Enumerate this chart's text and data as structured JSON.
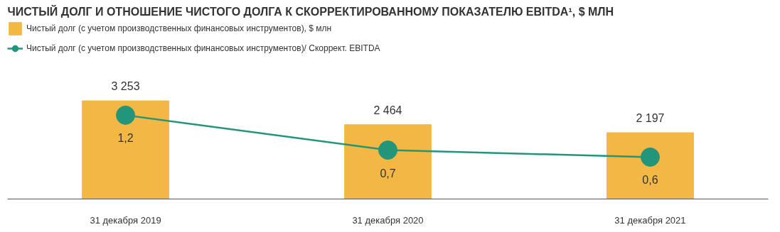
{
  "chart_data": {
    "type": "bar",
    "title": "ЧИСТЫЙ ДОЛГ И ОТНОШЕНИЕ ЧИСТОГО ДОЛГА К СКОРРЕКТИРОВАННОМУ ПОКАЗАТЕЛЮ EBITDA¹, $ МЛН",
    "categories": [
      "31 декабря 2019",
      "31 декабря 2020",
      "31 декабря 2021"
    ],
    "series": [
      {
        "name": "Чистый долг (с учетом производственных финансовых инструментов), $ млн",
        "color": "#f3b843",
        "values": [
          3253,
          2464,
          2197
        ],
        "value_labels": [
          "3 253",
          "2 464",
          "2 197"
        ]
      },
      {
        "name": "Чистый долг (с учетом производственных финансовых инструментов)/ Скоррект. EBITDA",
        "type": "line",
        "axis": "y2",
        "color": "#22957a",
        "values": [
          1.2,
          0.7,
          0.6
        ],
        "value_labels": [
          "1,2",
          "0,7",
          "0,6"
        ]
      }
    ],
    "ylim": [
      0,
      5900
    ],
    "y2lim": [
      0,
      2.55
    ],
    "marker": "circle",
    "legend": "top left",
    "grid": false,
    "tick_labels": "x"
  }
}
